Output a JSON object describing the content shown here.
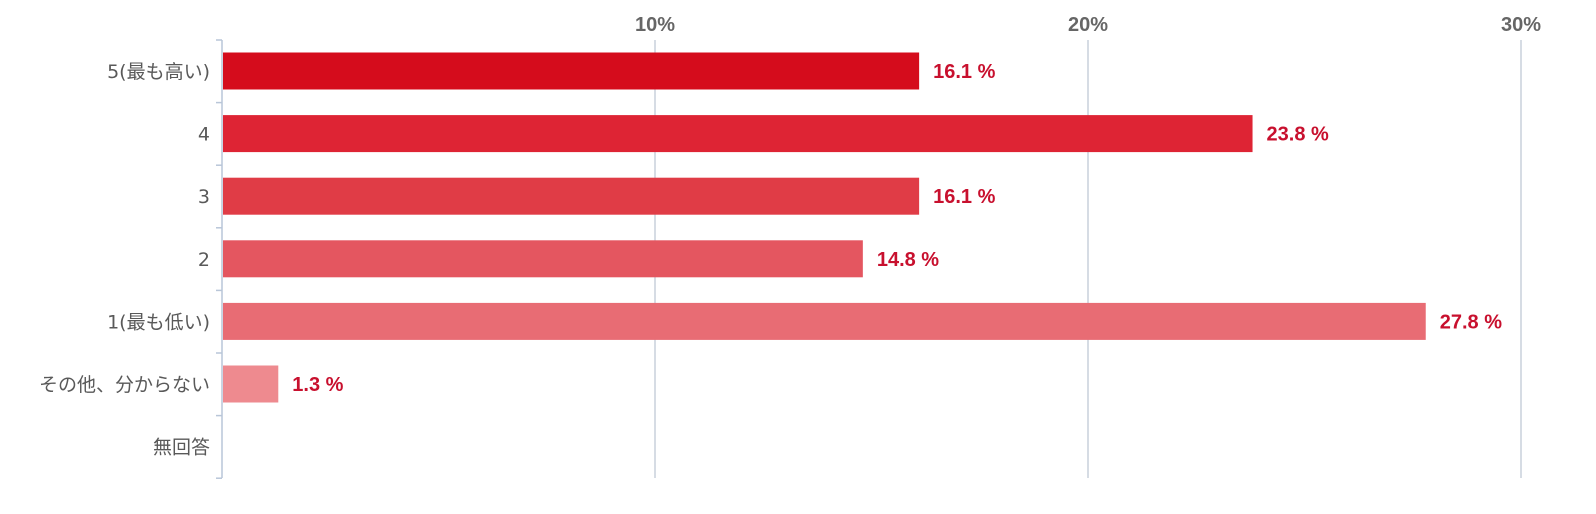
{
  "chart_data": {
    "type": "bar",
    "orientation": "horizontal",
    "categories": [
      "5(最も高い)",
      "4",
      "3",
      "2",
      "1(最も低い)",
      "その他、分からない",
      "無回答"
    ],
    "values": [
      16.1,
      23.8,
      16.1,
      14.8,
      27.8,
      1.3,
      0
    ],
    "value_labels": [
      "16.1 %",
      "23.8 %",
      "16.1 %",
      "14.8 %",
      "27.8 %",
      "1.3 %",
      ""
    ],
    "bar_colors": [
      "#d50c1c",
      "#de2434",
      "#e03c46",
      "#e45660",
      "#e86c74",
      "#ee8a8f",
      "#f2a6aa"
    ],
    "xlim": [
      0,
      30
    ],
    "xticks": [
      10,
      20,
      30
    ],
    "xtick_labels": [
      "10%",
      "20%",
      "30%"
    ],
    "axis_position": "top",
    "grid": true,
    "title": "",
    "xlabel": "",
    "ylabel": ""
  }
}
